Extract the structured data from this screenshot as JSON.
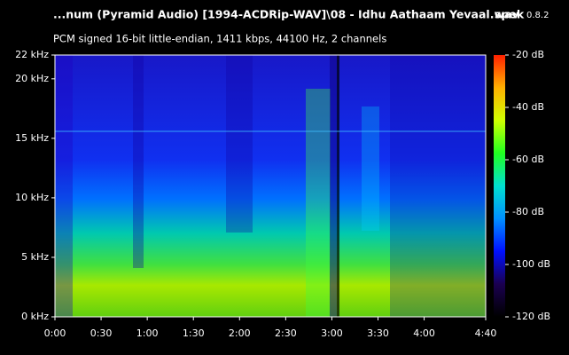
{
  "chart_data": {
    "type": "spectrogram",
    "title": "...num (Pyramid Audio) [1994-ACDRip-WAV]\\08 - Idhu Aathaam Yevaal.wav",
    "app_name": "spek",
    "app_version": "0.8.2",
    "subtitle": "PCM signed 16-bit little-endian, 1411 kbps, 44100 Hz, 2 channels",
    "xlim": [
      0,
      280
    ],
    "xticks": [
      {
        "value": 0,
        "label": "0:00"
      },
      {
        "value": 30,
        "label": "0:30"
      },
      {
        "value": 60,
        "label": "1:00"
      },
      {
        "value": 90,
        "label": "1:30"
      },
      {
        "value": 120,
        "label": "2:00"
      },
      {
        "value": 150,
        "label": "2:30"
      },
      {
        "value": 180,
        "label": "3:00"
      },
      {
        "value": 210,
        "label": "3:30"
      },
      {
        "value": 240,
        "label": "4:00"
      },
      {
        "value": 280,
        "label": "4:40"
      }
    ],
    "ylim": [
      0,
      22
    ],
    "yticks": [
      {
        "value": 0,
        "label": "0 kHz"
      },
      {
        "value": 5,
        "label": "5 kHz"
      },
      {
        "value": 10,
        "label": "10 kHz"
      },
      {
        "value": 15,
        "label": "15 kHz"
      },
      {
        "value": 20,
        "label": "20 kHz"
      },
      {
        "value": 22,
        "label": "22 kHz"
      }
    ],
    "zlim": [
      -120,
      -20
    ],
    "zticks": [
      {
        "value": -20,
        "label": "-20 dB"
      },
      {
        "value": -40,
        "label": "-40 dB"
      },
      {
        "value": -60,
        "label": "-60 dB"
      },
      {
        "value": -80,
        "label": "-80 dB"
      },
      {
        "value": -100,
        "label": "-100 dB"
      },
      {
        "value": -120,
        "label": "-120 dB"
      }
    ],
    "colormap": [
      "#000000",
      "#1a0050",
      "#0010ff",
      "#0090ff",
      "#00e0d0",
      "#20ff20",
      "#d0ff00",
      "#ffb000",
      "#ff2000"
    ]
  }
}
